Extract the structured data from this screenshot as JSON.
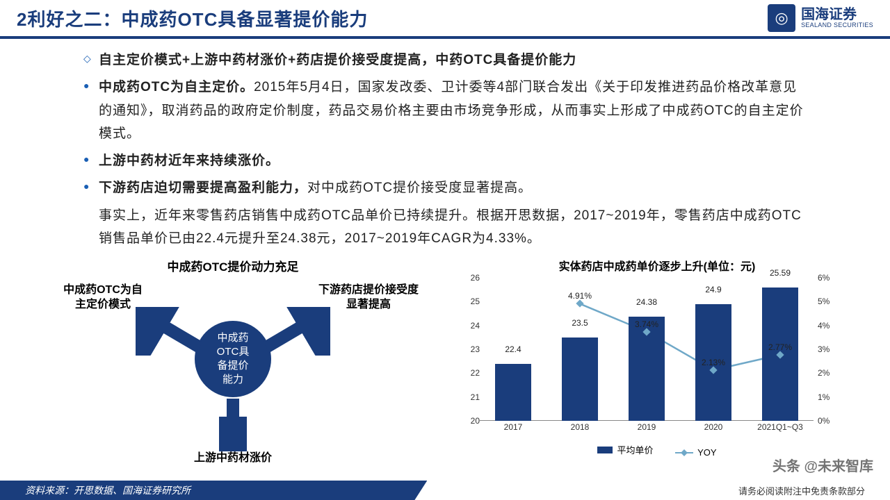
{
  "header": {
    "title": "2利好之二：中成药OTC具备显著提价能力",
    "logo_cn": "国海证券",
    "logo_en": "SEALAND SECURITIES",
    "logo_glyph": "◎"
  },
  "bullets": {
    "b1": "自主定价模式+上游中药材涨价+药店提价接受度提高，中药OTC具备提价能力",
    "b2_bold": "中成药OTC为自主定价。",
    "b2_rest": "2015年5月4日，国家发改委、卫计委等4部门联合发出《关于印发推进药品价格改革意见的通知》，取消药品的政府定价制度，药品交易价格主要由市场竞争形成，从而事实上形成了中成药OTC的自主定价模式。",
    "b3_bold": "上游中药材近年来持续涨价。",
    "b4_bold": "下游药店迫切需要提高盈利能力，",
    "b4_rest": "对中成药OTC提价接受度显著提高。",
    "b5": "事实上，近年来零售药店销售中成药OTC品单价已持续提升。根据开思数据，2017~2019年，零售药店中成药OTC销售品单价已由22.4元提升至24.38元，2017~2019年CAGR为4.33%。"
  },
  "diagram": {
    "title": "中成药OTC提价动力充足",
    "center": "中成药\nOTC具\n备提价\n能力",
    "top_left": "中成药OTC为自\n主定价模式",
    "top_right": "下游药店提价接受度\n显著提高",
    "bottom": "上游中药材涨价"
  },
  "chart": {
    "title": "实体药店中成药单价逐步上升(单位：元)",
    "type": "bar+line",
    "categories": [
      "2017",
      "2018",
      "2019",
      "2020",
      "2021Q1~Q3"
    ],
    "bars": [
      22.4,
      23.5,
      24.38,
      24.9,
      25.59
    ],
    "bar_color": "#1a3d7c",
    "line": [
      null,
      4.91,
      3.74,
      2.13,
      2.77
    ],
    "line_color": "#6fa8c8",
    "y_left": {
      "min": 20,
      "max": 26,
      "step": 1
    },
    "y_right": {
      "min": 0,
      "max": 6,
      "step": 1,
      "suffix": "%"
    },
    "legend": {
      "bar": "平均单价",
      "line": "YOY"
    }
  },
  "footer": {
    "left": "资料来源：开思数据、国海证券研究所",
    "right": "请务必阅读附注中免责条款部分"
  },
  "watermark": "头条 @未来智库"
}
